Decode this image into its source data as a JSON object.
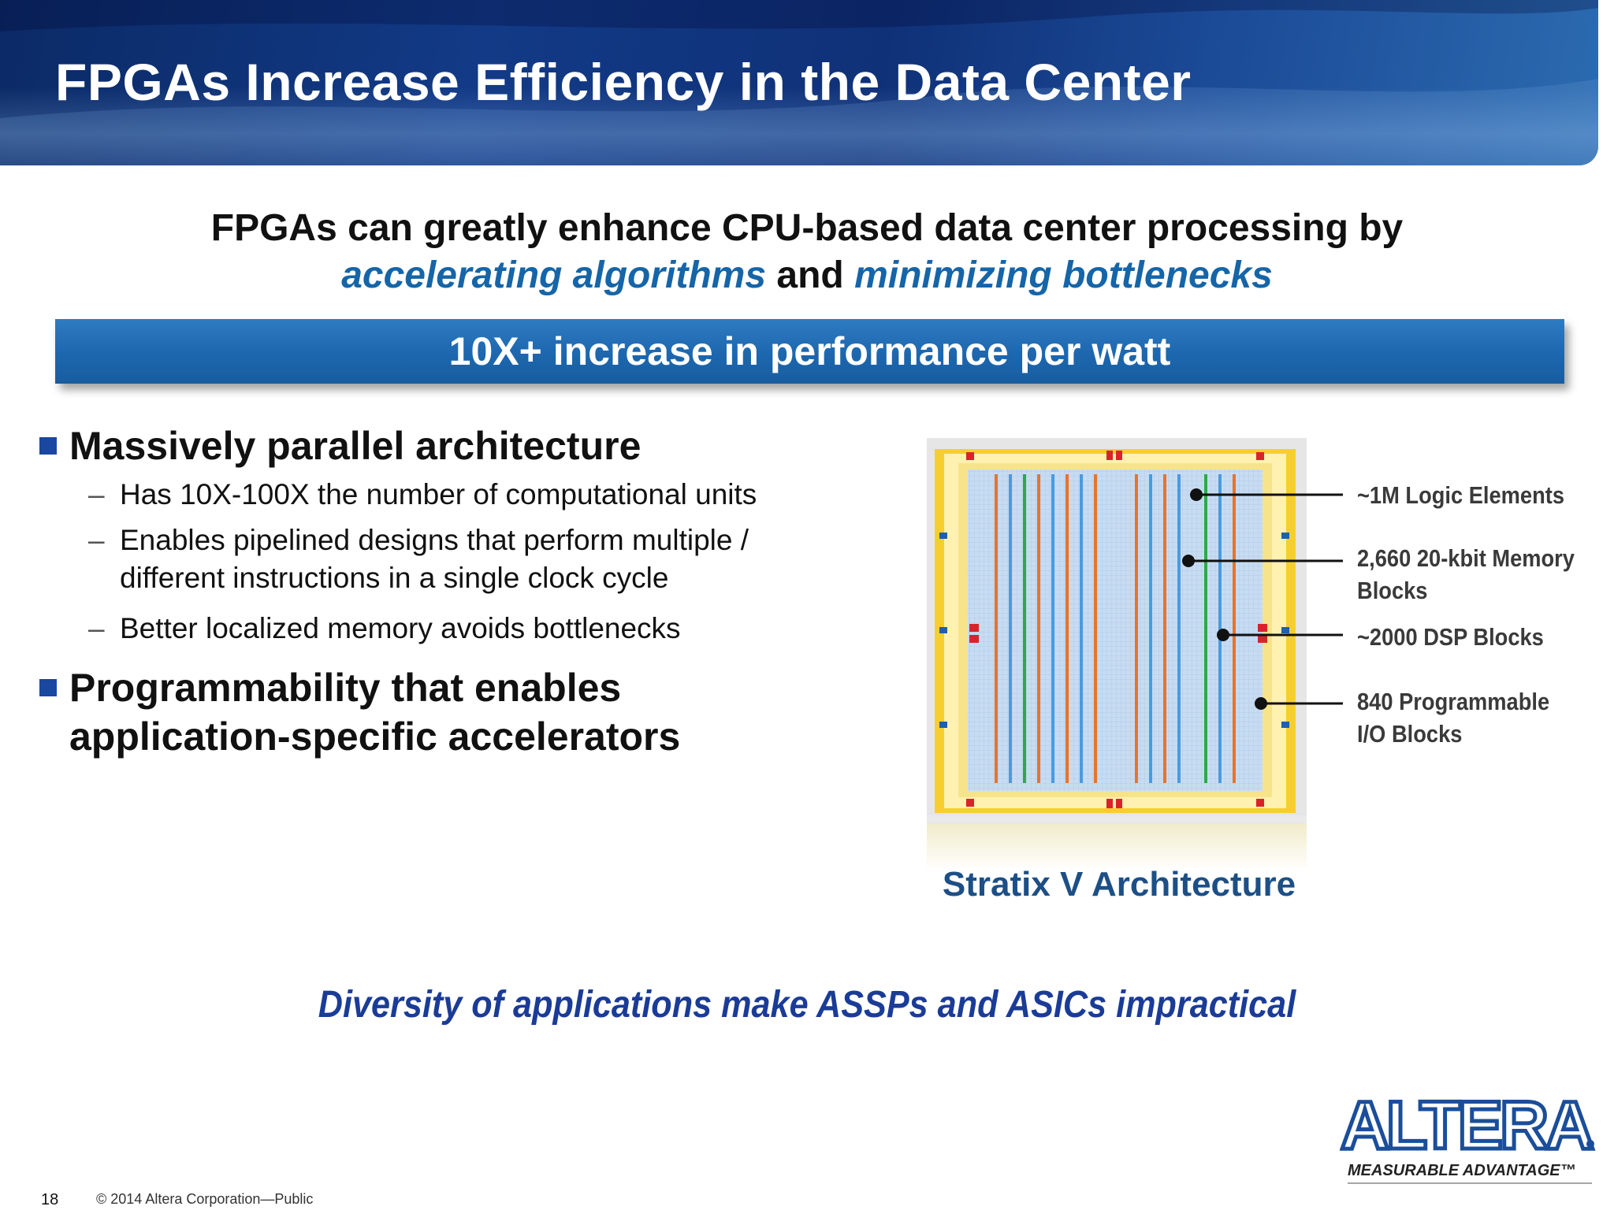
{
  "slide": {
    "title": "FPGAs Increase Efficiency in the Data Center",
    "subtitle_line1": "FPGAs can greatly enhance CPU-based data center processing by",
    "subtitle_hl1": "accelerating algorithms",
    "subtitle_and": " and ",
    "subtitle_hl2": "minimizing bottlenecks",
    "banner": "10X+ increase in performance per watt",
    "bullets": [
      {
        "text": "Massively parallel architecture",
        "subs": [
          "Has 10X-100X the number of computational units",
          "Enables pipelined designs that perform multiple / different instructions in a single clock cycle",
          "Better localized memory avoids bottlenecks"
        ]
      },
      {
        "text_line1": "Programmability that enables",
        "text_line2": "application-specific accelerators"
      }
    ],
    "dash": "–",
    "chip_caption": "Stratix V Architecture",
    "callouts": {
      "logic": "~1M Logic Elements",
      "memory_line1": "2,660 20-kbit Memory",
      "memory_line2": "Blocks",
      "dsp": "~2000 DSP Blocks",
      "io_line1": "840 Programmable",
      "io_line2": "I/O Blocks"
    },
    "bottom_message": "Diversity of applications make ASSPs and ASICs impractical",
    "page_number": "18",
    "copyright": "© 2014 Altera Corporation—Public",
    "logo_text": "ALTERA",
    "logo_tagline": "MEASURABLE ADVANTAGE™"
  },
  "colors": {
    "header": "#123a86",
    "banner": "#1e68b0",
    "highlight": "#1565a8",
    "bullet_square": "#1a47a0",
    "bottom_message": "#1a3c97",
    "chip_yellow": "#f6cf2e",
    "chip_blue": "#4a9be0",
    "chip_orange": "#e8742a",
    "chip_green": "#2fa84a"
  },
  "icons": {
    "bullet": "square-bullet-icon",
    "chip": "fpga-chip-diagram",
    "logo": "altera-logo"
  }
}
